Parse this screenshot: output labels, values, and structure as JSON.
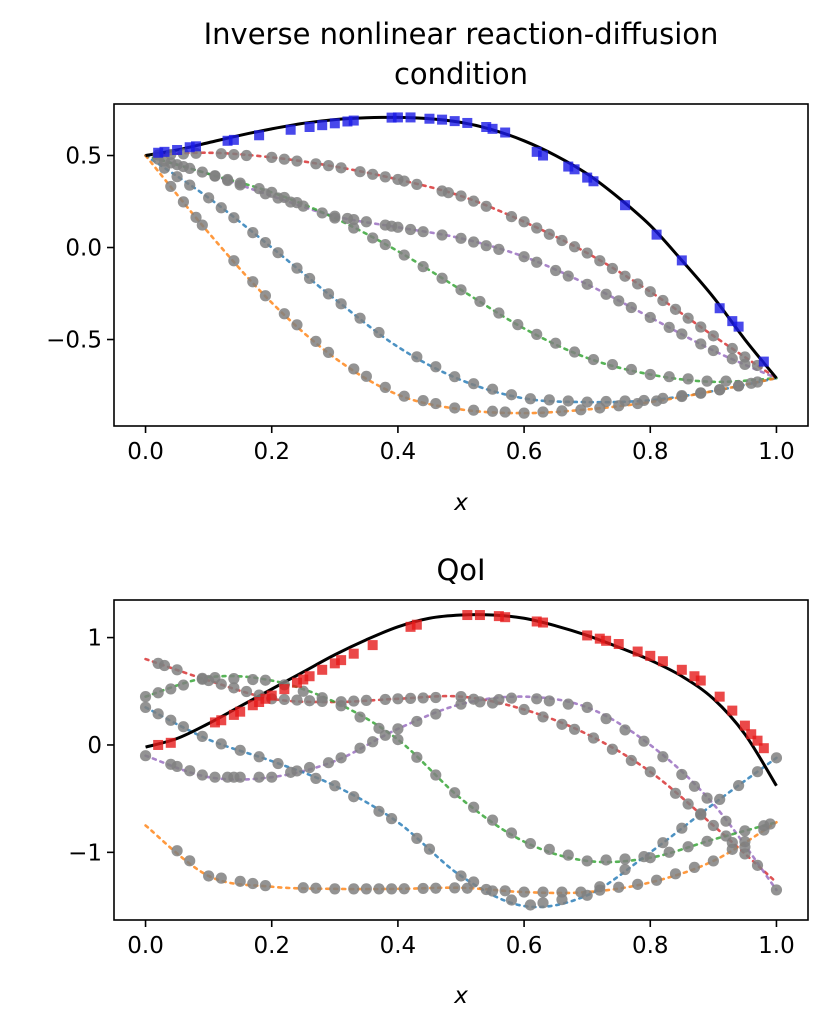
{
  "chart_data": [
    {
      "type": "line",
      "title": "Inverse nonlinear reaction-diffusion condition",
      "title_lines": [
        "Inverse nonlinear reaction-diffusion",
        "condition"
      ],
      "xlabel": "x",
      "ylabel": "",
      "xlim": [
        -0.05,
        1.05
      ],
      "ylim": [
        -0.97,
        0.78
      ],
      "xticks": [
        0.0,
        0.2,
        0.4,
        0.6,
        0.8,
        1.0
      ],
      "xtick_labels": [
        "0.0",
        "0.2",
        "0.4",
        "0.6",
        "0.8",
        "1.0"
      ],
      "yticks": [
        0.5,
        0.0,
        -0.5
      ],
      "ytick_labels": [
        "0.5",
        "0.0",
        "−0.5"
      ],
      "grid": false,
      "truth": {
        "color": "#000000",
        "x": [
          0.0,
          0.05,
          0.1,
          0.15,
          0.2,
          0.25,
          0.3,
          0.35,
          0.4,
          0.45,
          0.5,
          0.55,
          0.6,
          0.65,
          0.7,
          0.75,
          0.8,
          0.85,
          0.9,
          0.95,
          1.0
        ],
        "y": [
          0.5,
          0.53,
          0.57,
          0.61,
          0.645,
          0.675,
          0.695,
          0.705,
          0.707,
          0.7,
          0.68,
          0.64,
          0.58,
          0.5,
          0.4,
          0.27,
          0.12,
          -0.07,
          -0.27,
          -0.5,
          -0.71
        ]
      },
      "observations": {
        "color": "#1a1ae6",
        "marker": "square",
        "x": [
          0.02,
          0.03,
          0.05,
          0.07,
          0.08,
          0.13,
          0.14,
          0.18,
          0.23,
          0.26,
          0.28,
          0.3,
          0.32,
          0.33,
          0.39,
          0.4,
          0.42,
          0.45,
          0.47,
          0.49,
          0.51,
          0.54,
          0.55,
          0.57,
          0.62,
          0.63,
          0.67,
          0.68,
          0.7,
          0.71,
          0.76,
          0.81,
          0.85,
          0.91,
          0.93,
          0.94,
          0.98
        ],
        "y": [
          0.515,
          0.52,
          0.53,
          0.545,
          0.55,
          0.58,
          0.585,
          0.61,
          0.64,
          0.655,
          0.665,
          0.675,
          0.685,
          0.69,
          0.706,
          0.707,
          0.707,
          0.7,
          0.695,
          0.687,
          0.677,
          0.655,
          0.645,
          0.625,
          0.52,
          0.5,
          0.44,
          0.425,
          0.38,
          0.36,
          0.23,
          0.07,
          -0.07,
          -0.33,
          -0.4,
          -0.43,
          -0.62
        ]
      },
      "series": [
        {
          "color": "#d62728",
          "x": [
            0.0,
            0.1,
            0.2,
            0.3,
            0.4,
            0.5,
            0.6,
            0.7,
            0.8,
            0.9,
            1.0
          ],
          "y": [
            0.5,
            0.515,
            0.49,
            0.44,
            0.37,
            0.28,
            0.14,
            -0.03,
            -0.24,
            -0.48,
            -0.71
          ],
          "sample_x": [
            0.02,
            0.04,
            0.06,
            0.08,
            0.12,
            0.14,
            0.16,
            0.2,
            0.22,
            0.24,
            0.27,
            0.29,
            0.31,
            0.34,
            0.36,
            0.38,
            0.4,
            0.41,
            0.43,
            0.47,
            0.48,
            0.5,
            0.52,
            0.54,
            0.58,
            0.6,
            0.62,
            0.64,
            0.66,
            0.68,
            0.7,
            0.72,
            0.74,
            0.76,
            0.78,
            0.8,
            0.82,
            0.84,
            0.86,
            0.88,
            0.9,
            0.93,
            0.95,
            0.97
          ]
        },
        {
          "color": "#9467bd",
          "x": [
            0.0,
            0.1,
            0.2,
            0.3,
            0.4,
            0.5,
            0.6,
            0.7,
            0.8,
            0.9,
            1.0
          ],
          "y": [
            0.5,
            0.4,
            0.28,
            0.17,
            0.11,
            0.05,
            -0.05,
            -0.2,
            -0.38,
            -0.56,
            -0.71
          ],
          "sample_x": [
            0.02,
            0.04,
            0.06,
            0.09,
            0.11,
            0.13,
            0.15,
            0.19,
            0.21,
            0.23,
            0.25,
            0.3,
            0.32,
            0.33,
            0.35,
            0.38,
            0.39,
            0.4,
            0.42,
            0.44,
            0.47,
            0.5,
            0.52,
            0.54,
            0.56,
            0.6,
            0.62,
            0.65,
            0.67,
            0.7,
            0.73,
            0.75,
            0.77,
            0.8,
            0.83,
            0.85,
            0.88,
            0.9,
            0.93,
            0.95
          ]
        },
        {
          "color": "#2ca02c",
          "x": [
            0.0,
            0.1,
            0.2,
            0.3,
            0.4,
            0.5,
            0.6,
            0.7,
            0.8,
            0.9,
            1.0
          ],
          "y": [
            0.5,
            0.4,
            0.3,
            0.16,
            -0.02,
            -0.23,
            -0.44,
            -0.6,
            -0.69,
            -0.73,
            -0.71
          ],
          "sample_x": [
            0.03,
            0.05,
            0.07,
            0.11,
            0.13,
            0.15,
            0.18,
            0.2,
            0.22,
            0.24,
            0.28,
            0.3,
            0.33,
            0.36,
            0.38,
            0.41,
            0.44,
            0.47,
            0.5,
            0.53,
            0.56,
            0.59,
            0.62,
            0.65,
            0.68,
            0.71,
            0.74,
            0.77,
            0.8,
            0.83,
            0.86,
            0.89,
            0.92
          ]
        },
        {
          "color": "#1f77b4",
          "x": [
            0.0,
            0.1,
            0.2,
            0.3,
            0.4,
            0.5,
            0.6,
            0.7,
            0.8,
            0.9,
            1.0
          ],
          "y": [
            0.5,
            0.27,
            0.0,
            -0.28,
            -0.54,
            -0.72,
            -0.82,
            -0.84,
            -0.83,
            -0.78,
            -0.71
          ],
          "sample_x": [
            0.03,
            0.05,
            0.07,
            0.1,
            0.12,
            0.14,
            0.17,
            0.19,
            0.21,
            0.24,
            0.26,
            0.29,
            0.31,
            0.34,
            0.37,
            0.43,
            0.46,
            0.49,
            0.52,
            0.55,
            0.58,
            0.61,
            0.64,
            0.67,
            0.7,
            0.73,
            0.76,
            0.79,
            0.82,
            0.85,
            0.88,
            0.91,
            0.94,
            0.96
          ]
        },
        {
          "color": "#ff7f0e",
          "x": [
            0.0,
            0.1,
            0.2,
            0.3,
            0.4,
            0.5,
            0.6,
            0.7,
            0.8,
            0.9,
            1.0
          ],
          "y": [
            0.5,
            0.08,
            -0.3,
            -0.6,
            -0.8,
            -0.88,
            -0.9,
            -0.88,
            -0.84,
            -0.78,
            -0.71
          ],
          "sample_x": [
            0.04,
            0.06,
            0.08,
            0.09,
            0.14,
            0.17,
            0.19,
            0.22,
            0.24,
            0.27,
            0.29,
            0.33,
            0.35,
            0.38,
            0.41,
            0.44,
            0.46,
            0.49,
            0.52,
            0.55,
            0.57,
            0.6,
            0.63,
            0.66,
            0.69,
            0.72,
            0.75,
            0.78,
            0.81,
            0.85,
            0.88,
            0.91,
            0.94,
            0.97
          ]
        }
      ]
    },
    {
      "type": "line",
      "title": "QoI",
      "title_lines": [
        "QoI"
      ],
      "xlabel": "x",
      "ylabel": "",
      "xlim": [
        -0.05,
        1.05
      ],
      "ylim": [
        -1.63,
        1.35
      ],
      "xticks": [
        0.0,
        0.2,
        0.4,
        0.6,
        0.8,
        1.0
      ],
      "xtick_labels": [
        "0.0",
        "0.2",
        "0.4",
        "0.6",
        "0.8",
        "1.0"
      ],
      "yticks": [
        1,
        0,
        -1
      ],
      "ytick_labels": [
        "1",
        "0",
        "−1"
      ],
      "grid": false,
      "truth": {
        "color": "#000000",
        "x": [
          0.0,
          0.05,
          0.1,
          0.15,
          0.2,
          0.25,
          0.3,
          0.35,
          0.4,
          0.45,
          0.5,
          0.55,
          0.6,
          0.65,
          0.7,
          0.75,
          0.8,
          0.85,
          0.9,
          0.95,
          1.0
        ],
        "y": [
          -0.02,
          0.06,
          0.2,
          0.36,
          0.52,
          0.68,
          0.84,
          0.98,
          1.1,
          1.18,
          1.21,
          1.21,
          1.18,
          1.11,
          1.02,
          0.91,
          0.79,
          0.64,
          0.43,
          0.1,
          -0.38
        ]
      },
      "observations": {
        "color": "#e61a1a",
        "marker": "square",
        "x": [
          0.02,
          0.04,
          0.11,
          0.12,
          0.14,
          0.15,
          0.17,
          0.18,
          0.19,
          0.2,
          0.22,
          0.24,
          0.25,
          0.26,
          0.28,
          0.3,
          0.31,
          0.33,
          0.36,
          0.42,
          0.43,
          0.51,
          0.53,
          0.56,
          0.57,
          0.62,
          0.63,
          0.7,
          0.72,
          0.73,
          0.75,
          0.78,
          0.8,
          0.82,
          0.85,
          0.87,
          0.88,
          0.91,
          0.93,
          0.95,
          0.96,
          0.97,
          0.98
        ],
        "y": [
          0.0,
          0.02,
          0.21,
          0.23,
          0.28,
          0.31,
          0.37,
          0.4,
          0.43,
          0.46,
          0.52,
          0.58,
          0.61,
          0.64,
          0.7,
          0.76,
          0.79,
          0.85,
          0.93,
          1.1,
          1.12,
          1.21,
          1.21,
          1.2,
          1.19,
          1.15,
          1.14,
          1.02,
          0.99,
          0.97,
          0.94,
          0.87,
          0.83,
          0.78,
          0.7,
          0.64,
          0.6,
          0.45,
          0.32,
          0.18,
          0.1,
          0.04,
          -0.03
        ]
      },
      "series": [
        {
          "color": "#d62728",
          "x": [
            0.0,
            0.1,
            0.2,
            0.3,
            0.4,
            0.5,
            0.6,
            0.7,
            0.8,
            0.9,
            1.0
          ],
          "y": [
            0.8,
            0.6,
            0.43,
            0.4,
            0.43,
            0.45,
            0.33,
            0.1,
            -0.25,
            -0.75,
            -1.28
          ],
          "sample_x": [
            0.02,
            0.03,
            0.05,
            0.09,
            0.1,
            0.12,
            0.14,
            0.16,
            0.18,
            0.2,
            0.22,
            0.24,
            0.26,
            0.28,
            0.31,
            0.33,
            0.35,
            0.38,
            0.4,
            0.42,
            0.44,
            0.46,
            0.5,
            0.52,
            0.55,
            0.6,
            0.63,
            0.66,
            0.68,
            0.71,
            0.74,
            0.77,
            0.8,
            0.84,
            0.86,
            0.88,
            0.9,
            0.93,
            0.95,
            0.97
          ]
        },
        {
          "color": "#9467bd",
          "x": [
            0.0,
            0.1,
            0.2,
            0.3,
            0.4,
            0.5,
            0.6,
            0.7,
            0.8,
            0.9,
            1.0
          ],
          "y": [
            -0.1,
            -0.3,
            -0.3,
            -0.15,
            0.15,
            0.38,
            0.45,
            0.35,
            0.0,
            -0.55,
            -1.35
          ],
          "sample_x": [
            0.0,
            0.04,
            0.05,
            0.07,
            0.09,
            0.11,
            0.13,
            0.14,
            0.15,
            0.18,
            0.2,
            0.23,
            0.26,
            0.29,
            0.31,
            0.34,
            0.36,
            0.38,
            0.4,
            0.43,
            0.46,
            0.5,
            0.53,
            0.56,
            0.58,
            0.62,
            0.64,
            0.67,
            0.7,
            0.73,
            0.76,
            0.79,
            0.82,
            0.85,
            0.87,
            0.89,
            0.92,
            0.95,
            1.0
          ]
        },
        {
          "color": "#2ca02c",
          "x": [
            0.0,
            0.1,
            0.2,
            0.3,
            0.4,
            0.5,
            0.6,
            0.7,
            0.8,
            0.9,
            1.0
          ],
          "y": [
            0.45,
            0.63,
            0.6,
            0.4,
            0.05,
            -0.5,
            -0.9,
            -1.08,
            -1.05,
            -0.88,
            -0.72
          ],
          "sample_x": [
            0.0,
            0.02,
            0.04,
            0.06,
            0.09,
            0.11,
            0.14,
            0.17,
            0.19,
            0.22,
            0.25,
            0.28,
            0.31,
            0.34,
            0.37,
            0.4,
            0.43,
            0.46,
            0.49,
            0.52,
            0.55,
            0.58,
            0.61,
            0.64,
            0.67,
            0.7,
            0.73,
            0.76,
            0.8,
            0.83,
            0.86,
            0.89,
            0.92,
            0.95,
            0.98,
            0.99
          ]
        },
        {
          "color": "#1f77b4",
          "x": [
            0.0,
            0.1,
            0.2,
            0.3,
            0.4,
            0.5,
            0.6,
            0.7,
            0.8,
            0.9,
            1.0
          ],
          "y": [
            0.35,
            0.05,
            -0.15,
            -0.38,
            -0.72,
            -1.22,
            -1.5,
            -1.4,
            -1.0,
            -0.55,
            -0.12
          ],
          "sample_x": [
            0.0,
            0.02,
            0.04,
            0.06,
            0.09,
            0.12,
            0.15,
            0.18,
            0.21,
            0.24,
            0.27,
            0.3,
            0.33,
            0.37,
            0.39,
            0.43,
            0.45,
            0.5,
            0.52,
            0.55,
            0.58,
            0.61,
            0.63,
            0.66,
            0.7,
            0.72,
            0.76,
            0.79,
            0.82,
            0.85,
            0.88,
            0.91,
            0.94,
            0.97,
            1.0
          ]
        },
        {
          "color": "#ff7f0e",
          "x": [
            0.0,
            0.1,
            0.2,
            0.3,
            0.4,
            0.5,
            0.6,
            0.7,
            0.8,
            0.9,
            1.0
          ],
          "y": [
            -0.75,
            -1.22,
            -1.32,
            -1.34,
            -1.34,
            -1.33,
            -1.37,
            -1.37,
            -1.28,
            -1.08,
            -0.72
          ],
          "sample_x": [
            0.05,
            0.07,
            0.1,
            0.12,
            0.15,
            0.17,
            0.19,
            0.25,
            0.27,
            0.3,
            0.33,
            0.35,
            0.37,
            0.39,
            0.41,
            0.44,
            0.46,
            0.49,
            0.51,
            0.54,
            0.57,
            0.6,
            0.63,
            0.66,
            0.69,
            0.72,
            0.75,
            0.78,
            0.81,
            0.84,
            0.87,
            0.9,
            0.93,
            0.95,
            0.98
          ]
        }
      ]
    }
  ]
}
